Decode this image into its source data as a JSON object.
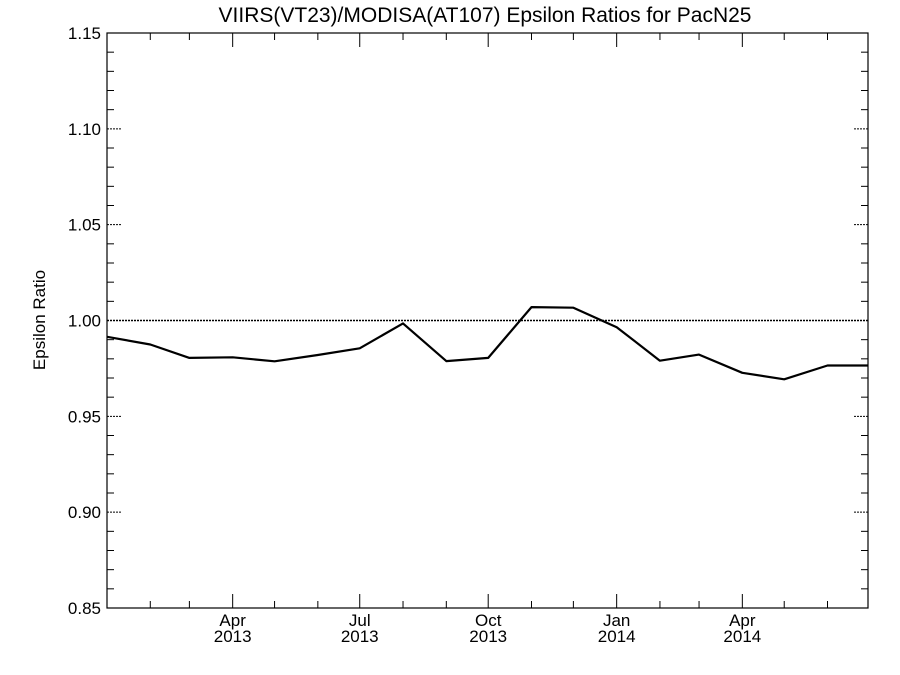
{
  "chart_data": {
    "type": "line",
    "title": "VIIRS(VT23)/MODISA(AT107)  Epsilon Ratios for PacN25",
    "xlabel": "",
    "ylabel": "Epsilon Ratio",
    "xlim": [
      "2013-01-01",
      "2014-06-30"
    ],
    "ylim": [
      0.85,
      1.15
    ],
    "yticks": [
      0.85,
      0.9,
      0.95,
      1.0,
      1.05,
      1.1,
      1.15
    ],
    "ytick_labels": [
      "0.85",
      "0.90",
      "0.95",
      "1.00",
      "1.05",
      "1.10",
      "1.15"
    ],
    "xticks": [
      {
        "date": "2013-04-01",
        "month": "Apr",
        "year": "2013"
      },
      {
        "date": "2013-07-01",
        "month": "Jul",
        "year": "2013"
      },
      {
        "date": "2013-10-01",
        "month": "Oct",
        "year": "2013"
      },
      {
        "date": "2014-01-01",
        "month": "Jan",
        "year": "2014"
      },
      {
        "date": "2014-04-01",
        "month": "Apr",
        "year": "2014"
      }
    ],
    "minor_xticks": [
      "2013-02-01",
      "2013-03-01",
      "2013-05-01",
      "2013-06-01",
      "2013-08-01",
      "2013-09-01",
      "2013-11-01",
      "2013-12-01",
      "2014-02-01",
      "2014-03-01",
      "2014-05-01",
      "2014-06-01"
    ],
    "reference_line": 1.0,
    "grid": false,
    "series": [
      {
        "x": [
          "2013-01-01",
          "2013-02-01",
          "2013-03-01",
          "2013-04-01",
          "2013-05-01",
          "2013-06-01",
          "2013-07-01",
          "2013-08-01",
          "2013-09-01",
          "2013-10-01",
          "2013-11-01",
          "2013-12-01",
          "2014-01-01",
          "2014-02-01",
          "2014-03-01",
          "2014-04-01",
          "2014-05-01",
          "2014-06-01",
          "2014-06-30"
        ],
        "y": [
          0.9915,
          0.9875,
          0.9805,
          0.9808,
          0.9787,
          0.982,
          0.9855,
          0.9985,
          0.9788,
          0.9805,
          1.007,
          1.0067,
          0.9965,
          0.979,
          0.9822,
          0.9727,
          0.9693,
          0.9765,
          0.9765
        ]
      }
    ]
  }
}
